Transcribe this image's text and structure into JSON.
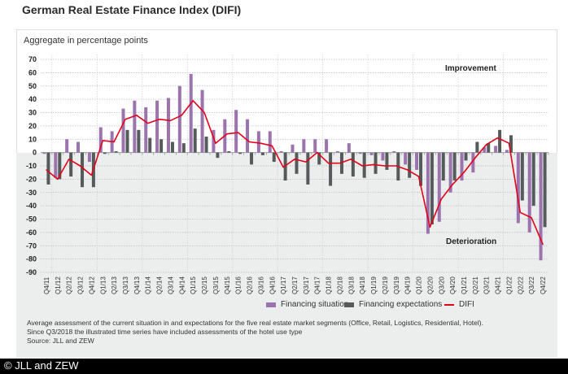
{
  "header": {
    "title": "German Real Estate Finance Index (DIFI)"
  },
  "chart_data": {
    "type": "bar",
    "title": "German Real Estate Finance Index (DIFI)",
    "ylabel": "Aggregate in percentage points",
    "xlabel": "",
    "ylim": [
      -90,
      70
    ],
    "yticks": [
      70,
      60,
      50,
      40,
      30,
      20,
      10,
      0,
      -10,
      -20,
      -30,
      -40,
      -50,
      -60,
      -70,
      -80,
      -90
    ],
    "grid": true,
    "legend_position": "bottom",
    "categories": [
      "Q4/11",
      "Q1/12",
      "Q2/12",
      "Q3/12",
      "Q4/12",
      "Q1/13",
      "Q2/13",
      "Q3/13",
      "Q4/13",
      "Q1/14",
      "Q2/14",
      "Q3/14",
      "Q4/14",
      "Q1/15",
      "Q2/15",
      "Q3/15",
      "Q4/15",
      "Q1/16",
      "Q2/16",
      "Q3/16",
      "Q4/16",
      "Q1/17",
      "Q2/17",
      "Q3/17",
      "Q4/17",
      "Q1/18",
      "Q2/18",
      "Q3/18",
      "Q4/18",
      "Q1/19",
      "Q2/19",
      "Q3/19",
      "Q4/19",
      "Q1/20",
      "Q2/20",
      "Q3/20",
      "Q4/20",
      "Q1/21",
      "Q2/21",
      "Q3/21",
      "Q4/21",
      "Q1/22",
      "Q2/22",
      "Q3/22",
      "Q4/22"
    ],
    "series": [
      {
        "name": "Financing situation",
        "type": "bar",
        "color": "#9b74ae",
        "values": [
          -1,
          -19,
          10,
          8,
          -7,
          19,
          16,
          33,
          39,
          34,
          39,
          41,
          50,
          59,
          47,
          17,
          25,
          32,
          25,
          16,
          16,
          1,
          6,
          10,
          10,
          10,
          1,
          7,
          -1,
          -2,
          -6,
          1,
          -9,
          -13,
          -61,
          -52,
          -30,
          -21,
          -15,
          4,
          5,
          2,
          -53,
          -60,
          -81
        ]
      },
      {
        "name": "Financing expectations",
        "type": "bar",
        "color": "#555a5a",
        "values": [
          -24,
          -20,
          -18,
          -26,
          -26,
          -1,
          1,
          17,
          17,
          11,
          10,
          8,
          7,
          18,
          12,
          -4,
          1,
          -1,
          -9,
          -2,
          -7,
          -21,
          -16,
          -24,
          -9,
          -25,
          -16,
          -18,
          -19,
          -16,
          -13,
          -21,
          -19,
          -25,
          -54,
          -21,
          -21,
          -6,
          8,
          7,
          17,
          13,
          -36,
          -40,
          -56
        ]
      },
      {
        "name": "DIFI",
        "type": "line",
        "color": "#e3001b",
        "values": [
          -13,
          -20,
          -5,
          -10,
          -17,
          9,
          8,
          25,
          28,
          22,
          25,
          24,
          28,
          39,
          30,
          7,
          14,
          15,
          8,
          7,
          5,
          -11,
          -5,
          -7,
          0,
          -8,
          -8,
          -5,
          -10,
          -9,
          -10,
          -10,
          -13,
          -18,
          -56,
          -35,
          -24,
          -15,
          -4,
          6,
          11,
          7,
          -45,
          -49,
          -69
        ]
      }
    ],
    "annotations": [
      {
        "text": "Improvement",
        "region": "top-right"
      },
      {
        "text": "Deterioration",
        "region": "bottom-right"
      }
    ]
  },
  "legend": [
    {
      "label": "Financing situation",
      "kind": "swatch",
      "color": "#9b74ae"
    },
    {
      "label": "Financing expectations",
      "kind": "swatch",
      "color": "#555a5a"
    },
    {
      "label": "DIFI",
      "kind": "line",
      "color": "#e3001b"
    }
  ],
  "notes": {
    "line1": "Average assessment of the current situation in and expectations for the five real estate market segments (Office, Retail, Logistics, Residential, Hotel).",
    "line2": "Since Q3/2018 the illustrated time series have included assessments of the hotel use type",
    "line3": "Source: JLL and ZEW"
  },
  "footer": {
    "copyright": "© JLL and ZEW"
  }
}
